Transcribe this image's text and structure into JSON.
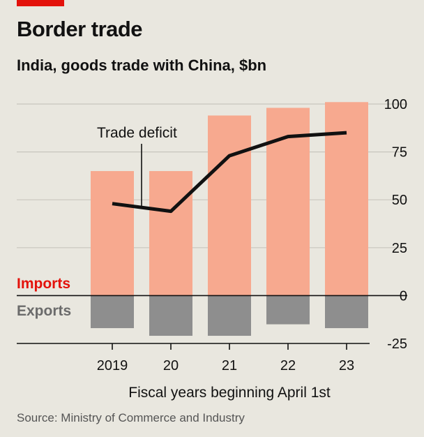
{
  "header": {
    "title": "Border trade",
    "subtitle": "India, goods trade with China, $bn"
  },
  "footer": {
    "source": "Source: Ministry of Commerce and Industry"
  },
  "colors": {
    "brand_red": "#e3120b",
    "imports": "#f7a98f",
    "exports": "#8e8e8e",
    "imports_label": "#e3120b",
    "exports_label": "#6b6b6b",
    "deficit_line": "#111111",
    "grid": "#c8c6be",
    "background": "#e9e7df"
  },
  "chart_data": {
    "type": "bar",
    "categories": [
      "2019",
      "20",
      "21",
      "22",
      "23"
    ],
    "series": [
      {
        "name": "Imports",
        "kind": "bar",
        "values": [
          65,
          65,
          94,
          98,
          101
        ]
      },
      {
        "name": "Exports",
        "kind": "bar",
        "values": [
          -17,
          -21,
          -21,
          -15,
          -17
        ]
      },
      {
        "name": "Trade deficit",
        "kind": "line",
        "values": [
          48,
          44,
          73,
          83,
          85
        ]
      }
    ],
    "xlabel": "Fiscal years beginning April 1st",
    "ylabel": "",
    "ylim": [
      -25,
      100
    ],
    "yticks": [
      100,
      75,
      50,
      25,
      0,
      -25
    ],
    "ytick_labels": [
      "100",
      "75",
      "50",
      "25",
      "0",
      "-25"
    ],
    "grid": true,
    "y_axis_position": "right",
    "legend": {
      "imports_label": "Imports",
      "exports_label": "Exports",
      "placement": "left, beside zero line"
    },
    "annotation": "Trade deficit"
  }
}
